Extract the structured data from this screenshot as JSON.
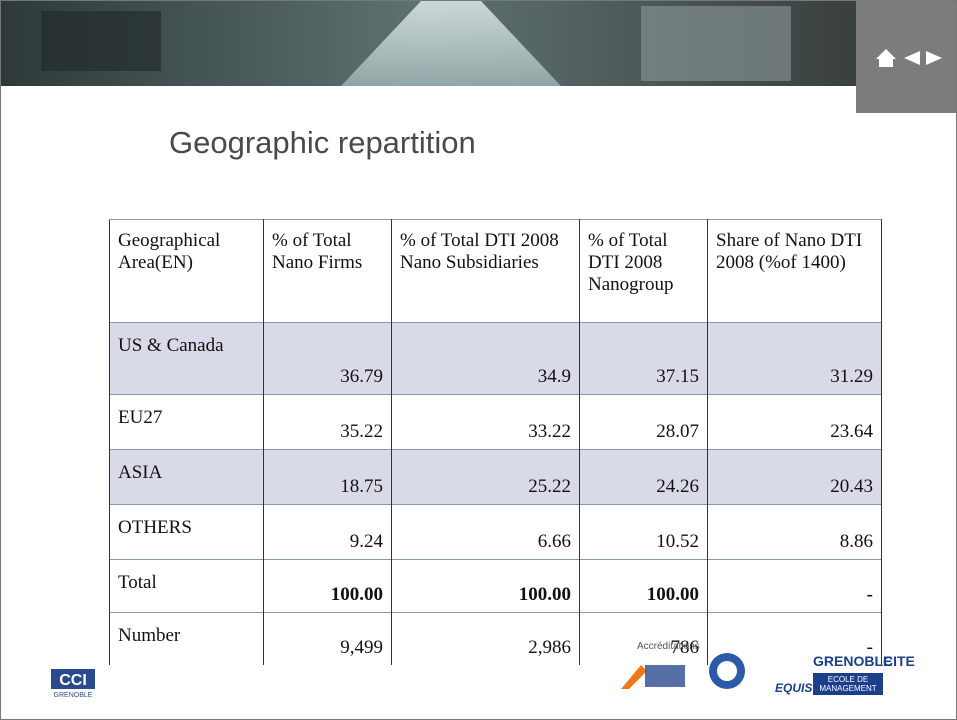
{
  "header": {
    "title": "Geographic repartition"
  },
  "table": {
    "columns": [
      "Geographical Area(EN)",
      "% of Total Nano Firms",
      "% of Total DTI 2008 Nano Subsidiaries",
      "% of Total DTI 2008 Nanogroup",
      "Share of Nano DTI 2008 (%of 1400)"
    ],
    "rows": [
      [
        "US & Canada",
        "36.79",
        "34.9",
        "37.15",
        "31.29"
      ],
      [
        "EU27",
        "35.22",
        "33.22",
        "28.07",
        "23.64"
      ],
      [
        "ASIA",
        "18.75",
        "25.22",
        "24.26",
        "20.43"
      ],
      [
        "OTHERS",
        "9.24",
        "6.66",
        "10.52",
        "8.86"
      ],
      [
        "Total",
        "100.00",
        "100.00",
        "100.00",
        "-"
      ],
      [
        "Number",
        "9,499",
        "2,986",
        "786",
        "-"
      ]
    ]
  },
  "footer": {
    "left_logo": "CCI",
    "left_logo_sub": "GRENOBLE",
    "accreditations": "Accréditations",
    "equis": "EQUIS",
    "school": "GRENOBLE",
    "school2": "CITE",
    "school_sub": "ECOLE DE MANAGEMENT"
  }
}
